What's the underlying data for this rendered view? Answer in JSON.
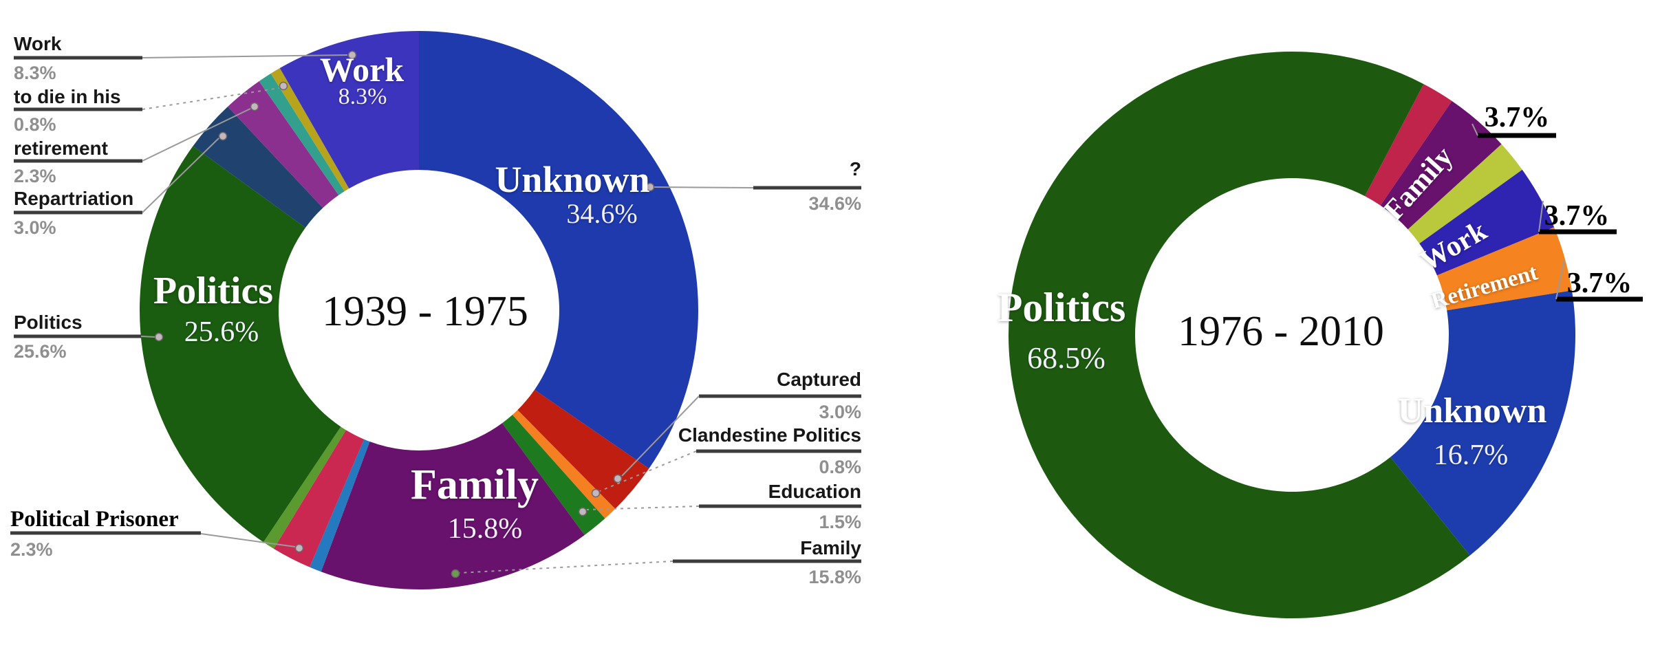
{
  "chart_data": [
    {
      "type": "pie",
      "donut": true,
      "title": "1939 - 1975",
      "direction": "clockwise",
      "start_angle_deg": 0,
      "segments": [
        {
          "label": "Unknown",
          "value": 34.6,
          "color": "#1e3aad",
          "inner": {
            "name": "Unknown",
            "pct": "34.6%"
          }
        },
        {
          "label": "Captured",
          "value": 3.0,
          "color": "#c01e10"
        },
        {
          "label": "Clandestine Politics",
          "value": 0.8,
          "color": "#f58021"
        },
        {
          "label": "Education",
          "value": 1.5,
          "color": "#1e7a1e"
        },
        {
          "label": "Family",
          "value": 15.8,
          "color": "#68126e",
          "inner": {
            "name": "Family",
            "pct": "15.8%"
          }
        },
        {
          "label": "",
          "value": 0.7,
          "color": "#2579be"
        },
        {
          "label": "Political Prisoner",
          "value": 2.3,
          "color": "#ca2850"
        },
        {
          "label": "",
          "value": 0.7,
          "color": "#5b9a2e"
        },
        {
          "label": "Politics",
          "value": 25.6,
          "color": "#1a5c10",
          "inner": {
            "name": "Politics",
            "pct": "25.6%"
          }
        },
        {
          "label": "Repartriation",
          "value": 3.0,
          "color": "#20426f"
        },
        {
          "label": "retirement",
          "value": 2.3,
          "color": "#8c3090"
        },
        {
          "label": "to die in his",
          "value": 0.8,
          "color": "#33a08e"
        },
        {
          "label": "",
          "value": 0.6,
          "color": "#b8a41c"
        },
        {
          "label": "Work",
          "value": 8.3,
          "color": "#3c34bd",
          "inner": {
            "name": "Work",
            "pct": "8.3%"
          }
        }
      ],
      "callouts": [
        {
          "id": "l-work",
          "text": "Work",
          "pct": "8.3%"
        },
        {
          "id": "l-todiein",
          "text": "to die in his",
          "pct": "0.8%"
        },
        {
          "id": "l-retirement",
          "text": "retirement",
          "pct": "2.3%"
        },
        {
          "id": "l-repartriation",
          "text": "Repartriation",
          "pct": "3.0%"
        },
        {
          "id": "l-politics",
          "text": "Politics",
          "pct": "25.6%"
        },
        {
          "id": "l-political-prisoner",
          "text": "Political Prisoner",
          "pct": "2.3%",
          "emphasis": true
        },
        {
          "id": "r-unknown",
          "text": "?",
          "pct": "34.6%"
        },
        {
          "id": "r-captured",
          "text": "Captured",
          "pct": "3.0%"
        },
        {
          "id": "r-clandestine",
          "text": "Clandestine Politics",
          "pct": "0.8%"
        },
        {
          "id": "r-education",
          "text": "Education",
          "pct": "1.5%"
        },
        {
          "id": "r-family",
          "text": "Family",
          "pct": "15.8%"
        }
      ]
    },
    {
      "type": "pie",
      "donut": true,
      "title": "1976 - 2010",
      "direction": "clockwise",
      "start_angle_deg": 27.7,
      "segments": [
        {
          "label": "",
          "value": 1.85,
          "color": "#c0244a"
        },
        {
          "label": "Family",
          "value": 3.7,
          "color": "#68126e",
          "inner": {
            "name": "Family"
          }
        },
        {
          "label": "",
          "value": 1.85,
          "color": "#b9c93b"
        },
        {
          "label": "Work",
          "value": 3.7,
          "color": "#2f23b2",
          "inner": {
            "name": "Work"
          }
        },
        {
          "label": "Retirement",
          "value": 3.7,
          "color": "#f5831f",
          "inner": {
            "name": "Retirement"
          }
        },
        {
          "label": "Unknown",
          "value": 16.7,
          "color": "#1d3dae",
          "inner": {
            "name": "Unknown",
            "pct": "16.7%"
          }
        },
        {
          "label": "Politics",
          "value": 68.5,
          "color": "#1d5a10",
          "inner": {
            "name": "Politics",
            "pct": "68.5%"
          }
        }
      ],
      "callouts": [
        {
          "id": "c1",
          "text": "3.7%"
        },
        {
          "id": "c2",
          "text": "3.7%"
        },
        {
          "id": "c3",
          "text": "3.7%"
        }
      ]
    }
  ]
}
